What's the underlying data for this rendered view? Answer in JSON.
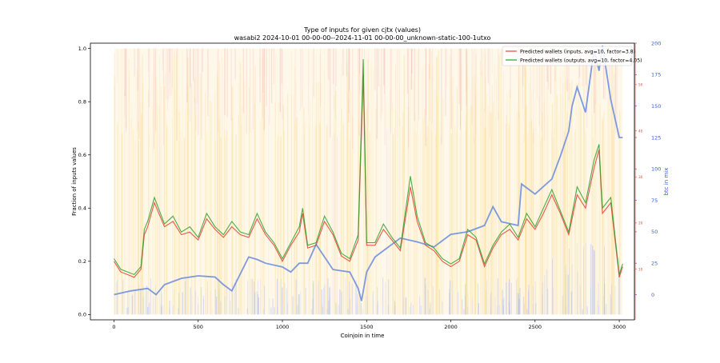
{
  "chart_data": {
    "type": "line",
    "title": "Type of inputs for given cjtx (values)",
    "subtitle": "wasabi2 2024-10-01 00-00-00--2024-11-01 00-00-00_unknown-static-100-1utxo",
    "xlabel": "Coinjoin in time",
    "ylabel": "Fraction of inputs values",
    "y2label": "btc in mix",
    "xlim": [
      -140,
      3090
    ],
    "ylim": [
      -0.02,
      1.02
    ],
    "y2lim": [
      -20,
      200
    ],
    "y3lim": [
      -1,
      59
    ],
    "xticks": [
      0,
      500,
      1000,
      1500,
      2000,
      2500,
      3000
    ],
    "yticks": [
      0.0,
      0.2,
      0.4,
      0.6,
      0.8,
      1.0
    ],
    "y2ticks": [
      0,
      25,
      50,
      75,
      100,
      125,
      150,
      175,
      200
    ],
    "y3ticks": [
      10,
      20,
      30,
      40,
      50
    ],
    "legend_position": "upper right",
    "grid": false,
    "colors": {
      "inputs": "#e8473a",
      "outputs": "#2ca02c",
      "btc": "#6f8fe0",
      "bg_orange": "#fbd98a",
      "bg_red": "#f4a3a3",
      "bg_blue": "#a8b8f4",
      "axis_right_2": "#e8473a",
      "axis_right_1": "#3a5fd9"
    },
    "series": [
      {
        "name": "Predicted wallets (inputs, avg=10, factor=3.8)",
        "x": [
          0,
          40,
          80,
          120,
          160,
          180,
          200,
          240,
          300,
          350,
          400,
          450,
          500,
          550,
          600,
          650,
          700,
          750,
          800,
          850,
          900,
          950,
          1000,
          1050,
          1100,
          1120,
          1150,
          1200,
          1250,
          1300,
          1350,
          1400,
          1450,
          1480,
          1500,
          1550,
          1600,
          1650,
          1700,
          1760,
          1800,
          1850,
          1900,
          1950,
          2000,
          2050,
          2100,
          2150,
          2200,
          2250,
          2300,
          2350,
          2400,
          2450,
          2500,
          2550,
          2600,
          2650,
          2700,
          2750,
          2800,
          2850,
          2880,
          2900,
          2950,
          3000,
          3020
        ],
        "values": [
          0.2,
          0.16,
          0.15,
          0.14,
          0.17,
          0.3,
          0.33,
          0.42,
          0.33,
          0.35,
          0.3,
          0.31,
          0.28,
          0.36,
          0.32,
          0.29,
          0.33,
          0.3,
          0.29,
          0.36,
          0.3,
          0.26,
          0.2,
          0.26,
          0.31,
          0.38,
          0.25,
          0.26,
          0.35,
          0.3,
          0.22,
          0.2,
          0.28,
          0.9,
          0.26,
          0.26,
          0.32,
          0.28,
          0.24,
          0.48,
          0.35,
          0.26,
          0.24,
          0.2,
          0.18,
          0.2,
          0.3,
          0.28,
          0.18,
          0.25,
          0.3,
          0.32,
          0.28,
          0.36,
          0.32,
          0.38,
          0.45,
          0.38,
          0.3,
          0.45,
          0.4,
          0.55,
          0.62,
          0.38,
          0.42,
          0.14,
          0.18
        ]
      },
      {
        "name": "Predicted wallets (outputs, avg=10, factor=4.05)",
        "x": [
          0,
          40,
          80,
          120,
          160,
          180,
          200,
          240,
          300,
          350,
          400,
          450,
          500,
          550,
          600,
          650,
          700,
          750,
          800,
          850,
          900,
          950,
          1000,
          1050,
          1100,
          1120,
          1150,
          1200,
          1250,
          1300,
          1350,
          1400,
          1450,
          1480,
          1500,
          1550,
          1600,
          1650,
          1700,
          1760,
          1800,
          1850,
          1900,
          1950,
          2000,
          2050,
          2100,
          2150,
          2200,
          2250,
          2300,
          2350,
          2400,
          2450,
          2500,
          2550,
          2600,
          2650,
          2700,
          2750,
          2800,
          2850,
          2880,
          2900,
          2950,
          3000,
          3020
        ],
        "values": [
          0.21,
          0.17,
          0.16,
          0.15,
          0.18,
          0.32,
          0.35,
          0.44,
          0.34,
          0.37,
          0.31,
          0.33,
          0.29,
          0.38,
          0.33,
          0.3,
          0.35,
          0.31,
          0.3,
          0.38,
          0.31,
          0.27,
          0.21,
          0.27,
          0.33,
          0.4,
          0.26,
          0.27,
          0.37,
          0.31,
          0.23,
          0.21,
          0.3,
          0.96,
          0.27,
          0.27,
          0.34,
          0.29,
          0.25,
          0.52,
          0.37,
          0.27,
          0.25,
          0.21,
          0.19,
          0.21,
          0.32,
          0.29,
          0.19,
          0.26,
          0.31,
          0.34,
          0.29,
          0.38,
          0.33,
          0.4,
          0.47,
          0.39,
          0.31,
          0.48,
          0.42,
          0.58,
          0.64,
          0.4,
          0.44,
          0.15,
          0.19
        ]
      },
      {
        "name": "btc in mix",
        "axis": "right",
        "x": [
          0,
          100,
          200,
          250,
          300,
          400,
          500,
          600,
          650,
          700,
          800,
          850,
          900,
          1000,
          1050,
          1100,
          1150,
          1200,
          1300,
          1400,
          1450,
          1470,
          1500,
          1550,
          1600,
          1700,
          1800,
          1900,
          2000,
          2100,
          2200,
          2250,
          2300,
          2400,
          2420,
          2500,
          2600,
          2650,
          2700,
          2720,
          2750,
          2800,
          2850,
          2880,
          2900,
          2950,
          3000,
          3020
        ],
        "values": [
          0,
          3,
          5,
          0,
          8,
          13,
          15,
          14,
          8,
          3,
          30,
          28,
          25,
          22,
          18,
          25,
          25,
          40,
          20,
          18,
          5,
          -5,
          18,
          30,
          35,
          45,
          42,
          38,
          48,
          50,
          55,
          70,
          58,
          55,
          88,
          80,
          92,
          110,
          130,
          150,
          165,
          145,
          195,
          178,
          198,
          155,
          125,
          125
        ]
      }
    ]
  }
}
